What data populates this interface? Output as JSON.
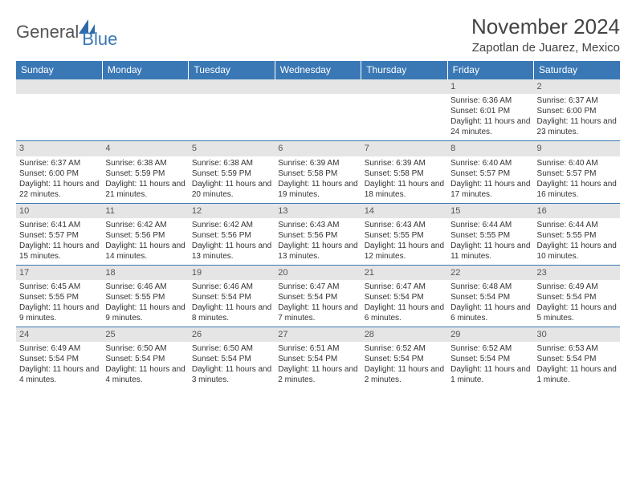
{
  "brand": {
    "general": "General",
    "blue": "Blue",
    "icon_color": "#2e6aa8"
  },
  "title": {
    "month": "November 2024",
    "location": "Zapotlan de Juarez, Mexico",
    "title_color": "#444444",
    "title_fontsize": 26,
    "location_fontsize": 15
  },
  "calendar": {
    "header_bg": "#3a78b5",
    "header_fg": "#ffffff",
    "row_border": "#3a78b5",
    "daynum_bg": "#e5e5e5",
    "days": [
      "Sunday",
      "Monday",
      "Tuesday",
      "Wednesday",
      "Thursday",
      "Friday",
      "Saturday"
    ],
    "weeks": [
      [
        null,
        null,
        null,
        null,
        null,
        {
          "num": "1",
          "sunrise": "Sunrise: 6:36 AM",
          "sunset": "Sunset: 6:01 PM",
          "daylight": "Daylight: 11 hours and 24 minutes."
        },
        {
          "num": "2",
          "sunrise": "Sunrise: 6:37 AM",
          "sunset": "Sunset: 6:00 PM",
          "daylight": "Daylight: 11 hours and 23 minutes."
        }
      ],
      [
        {
          "num": "3",
          "sunrise": "Sunrise: 6:37 AM",
          "sunset": "Sunset: 6:00 PM",
          "daylight": "Daylight: 11 hours and 22 minutes."
        },
        {
          "num": "4",
          "sunrise": "Sunrise: 6:38 AM",
          "sunset": "Sunset: 5:59 PM",
          "daylight": "Daylight: 11 hours and 21 minutes."
        },
        {
          "num": "5",
          "sunrise": "Sunrise: 6:38 AM",
          "sunset": "Sunset: 5:59 PM",
          "daylight": "Daylight: 11 hours and 20 minutes."
        },
        {
          "num": "6",
          "sunrise": "Sunrise: 6:39 AM",
          "sunset": "Sunset: 5:58 PM",
          "daylight": "Daylight: 11 hours and 19 minutes."
        },
        {
          "num": "7",
          "sunrise": "Sunrise: 6:39 AM",
          "sunset": "Sunset: 5:58 PM",
          "daylight": "Daylight: 11 hours and 18 minutes."
        },
        {
          "num": "8",
          "sunrise": "Sunrise: 6:40 AM",
          "sunset": "Sunset: 5:57 PM",
          "daylight": "Daylight: 11 hours and 17 minutes."
        },
        {
          "num": "9",
          "sunrise": "Sunrise: 6:40 AM",
          "sunset": "Sunset: 5:57 PM",
          "daylight": "Daylight: 11 hours and 16 minutes."
        }
      ],
      [
        {
          "num": "10",
          "sunrise": "Sunrise: 6:41 AM",
          "sunset": "Sunset: 5:57 PM",
          "daylight": "Daylight: 11 hours and 15 minutes."
        },
        {
          "num": "11",
          "sunrise": "Sunrise: 6:42 AM",
          "sunset": "Sunset: 5:56 PM",
          "daylight": "Daylight: 11 hours and 14 minutes."
        },
        {
          "num": "12",
          "sunrise": "Sunrise: 6:42 AM",
          "sunset": "Sunset: 5:56 PM",
          "daylight": "Daylight: 11 hours and 13 minutes."
        },
        {
          "num": "13",
          "sunrise": "Sunrise: 6:43 AM",
          "sunset": "Sunset: 5:56 PM",
          "daylight": "Daylight: 11 hours and 13 minutes."
        },
        {
          "num": "14",
          "sunrise": "Sunrise: 6:43 AM",
          "sunset": "Sunset: 5:55 PM",
          "daylight": "Daylight: 11 hours and 12 minutes."
        },
        {
          "num": "15",
          "sunrise": "Sunrise: 6:44 AM",
          "sunset": "Sunset: 5:55 PM",
          "daylight": "Daylight: 11 hours and 11 minutes."
        },
        {
          "num": "16",
          "sunrise": "Sunrise: 6:44 AM",
          "sunset": "Sunset: 5:55 PM",
          "daylight": "Daylight: 11 hours and 10 minutes."
        }
      ],
      [
        {
          "num": "17",
          "sunrise": "Sunrise: 6:45 AM",
          "sunset": "Sunset: 5:55 PM",
          "daylight": "Daylight: 11 hours and 9 minutes."
        },
        {
          "num": "18",
          "sunrise": "Sunrise: 6:46 AM",
          "sunset": "Sunset: 5:55 PM",
          "daylight": "Daylight: 11 hours and 9 minutes."
        },
        {
          "num": "19",
          "sunrise": "Sunrise: 6:46 AM",
          "sunset": "Sunset: 5:54 PM",
          "daylight": "Daylight: 11 hours and 8 minutes."
        },
        {
          "num": "20",
          "sunrise": "Sunrise: 6:47 AM",
          "sunset": "Sunset: 5:54 PM",
          "daylight": "Daylight: 11 hours and 7 minutes."
        },
        {
          "num": "21",
          "sunrise": "Sunrise: 6:47 AM",
          "sunset": "Sunset: 5:54 PM",
          "daylight": "Daylight: 11 hours and 6 minutes."
        },
        {
          "num": "22",
          "sunrise": "Sunrise: 6:48 AM",
          "sunset": "Sunset: 5:54 PM",
          "daylight": "Daylight: 11 hours and 6 minutes."
        },
        {
          "num": "23",
          "sunrise": "Sunrise: 6:49 AM",
          "sunset": "Sunset: 5:54 PM",
          "daylight": "Daylight: 11 hours and 5 minutes."
        }
      ],
      [
        {
          "num": "24",
          "sunrise": "Sunrise: 6:49 AM",
          "sunset": "Sunset: 5:54 PM",
          "daylight": "Daylight: 11 hours and 4 minutes."
        },
        {
          "num": "25",
          "sunrise": "Sunrise: 6:50 AM",
          "sunset": "Sunset: 5:54 PM",
          "daylight": "Daylight: 11 hours and 4 minutes."
        },
        {
          "num": "26",
          "sunrise": "Sunrise: 6:50 AM",
          "sunset": "Sunset: 5:54 PM",
          "daylight": "Daylight: 11 hours and 3 minutes."
        },
        {
          "num": "27",
          "sunrise": "Sunrise: 6:51 AM",
          "sunset": "Sunset: 5:54 PM",
          "daylight": "Daylight: 11 hours and 2 minutes."
        },
        {
          "num": "28",
          "sunrise": "Sunrise: 6:52 AM",
          "sunset": "Sunset: 5:54 PM",
          "daylight": "Daylight: 11 hours and 2 minutes."
        },
        {
          "num": "29",
          "sunrise": "Sunrise: 6:52 AM",
          "sunset": "Sunset: 5:54 PM",
          "daylight": "Daylight: 11 hours and 1 minute."
        },
        {
          "num": "30",
          "sunrise": "Sunrise: 6:53 AM",
          "sunset": "Sunset: 5:54 PM",
          "daylight": "Daylight: 11 hours and 1 minute."
        }
      ]
    ]
  }
}
